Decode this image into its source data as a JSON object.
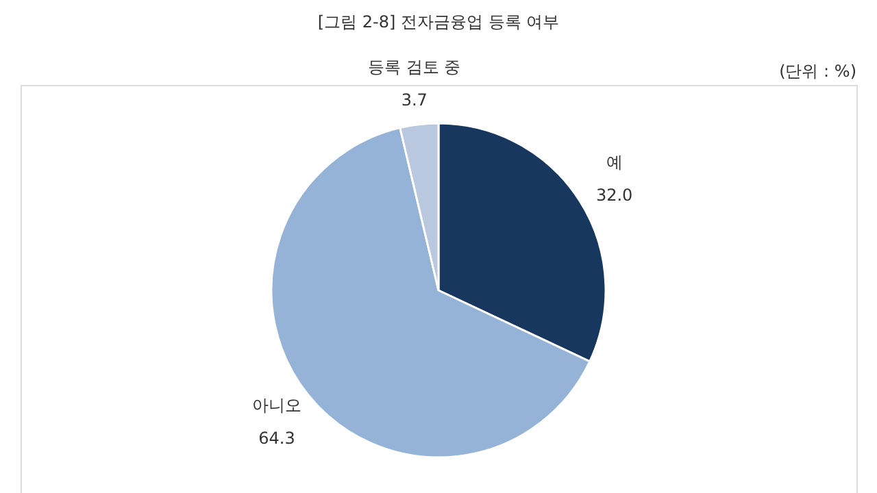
{
  "chart_data": {
    "type": "pie",
    "title": "[그림 2-8] 전자금융업 등록 여부",
    "annotations": [
      "(단위 : %)"
    ],
    "categories": [
      "예",
      "아니오",
      "등록 검토 중"
    ],
    "values": [
      32.0,
      64.3,
      3.7
    ],
    "colors": [
      "#17375e",
      "#95b3d7",
      "#b9c7df"
    ],
    "value_labels": [
      "32.0",
      "64.3",
      "3.7"
    ]
  }
}
